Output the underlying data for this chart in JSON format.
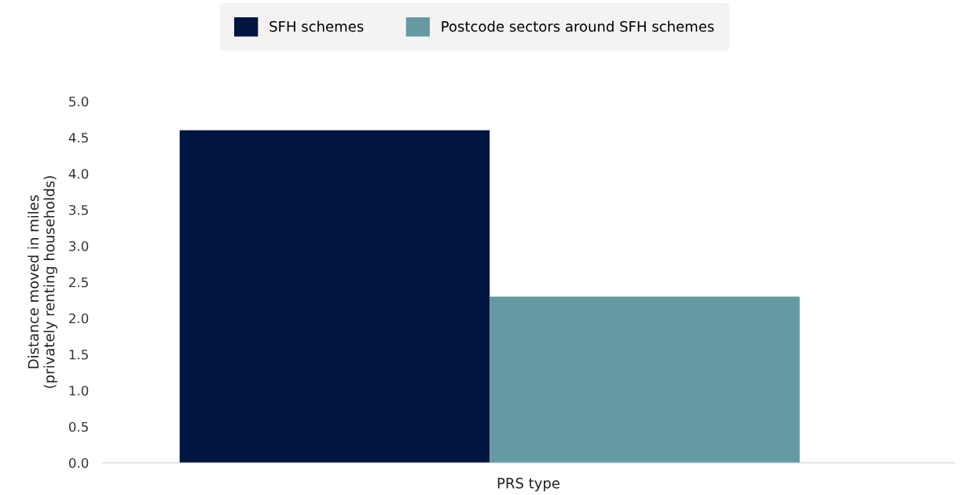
{
  "chart_data": {
    "type": "bar",
    "xlabel": "PRS type",
    "ylabel": "Distance moved in miles\n(privately renting households)",
    "categories": [
      null
    ],
    "series": [
      {
        "name": "SFH schemes",
        "color": "#001641",
        "values": [
          4.6
        ]
      },
      {
        "name": "Postcode sectors around SFH schemes",
        "color": "#659aa3",
        "values": [
          2.3
        ]
      }
    ],
    "ylim": [
      0,
      5
    ],
    "yticks": [
      {
        "value": 0,
        "label": "0.0"
      },
      {
        "value": 0.5,
        "label": "0.5"
      },
      {
        "value": 1,
        "label": "1.0"
      },
      {
        "value": 1.5,
        "label": "1.5"
      },
      {
        "value": 2,
        "label": "2.0"
      },
      {
        "value": 2.5,
        "label": "2.5"
      },
      {
        "value": 3,
        "label": "3.0"
      },
      {
        "value": 3.5,
        "label": "3.5"
      },
      {
        "value": 4,
        "label": "4.0"
      },
      {
        "value": 4.5,
        "label": "4.5"
      },
      {
        "value": 5,
        "label": "5.0"
      }
    ],
    "grid": false,
    "legend": "top"
  }
}
